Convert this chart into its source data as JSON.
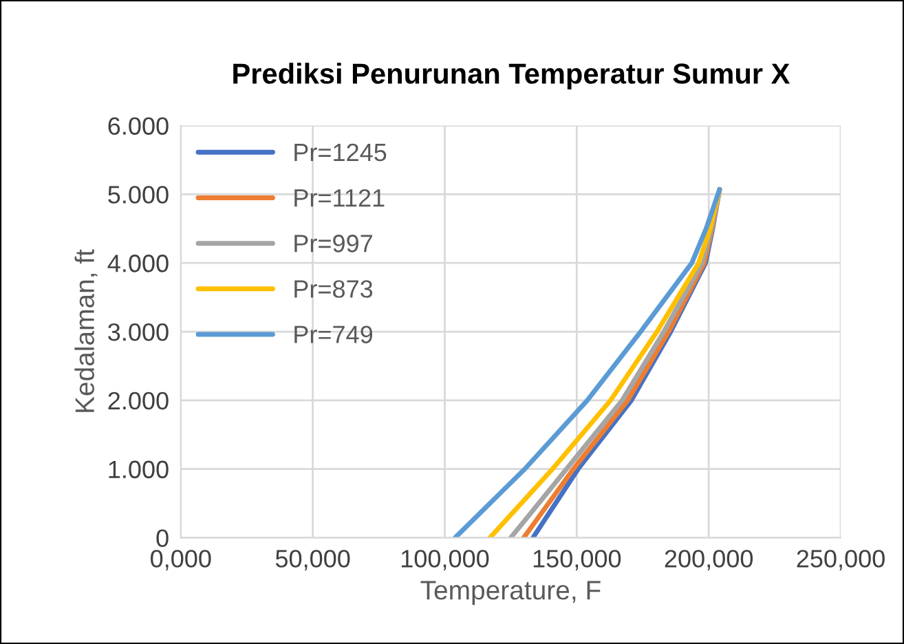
{
  "chart_data": {
    "type": "line",
    "title": "Prediksi Penurunan Temperatur Sumur X",
    "xlabel": "Temperature, F",
    "ylabel": "Kedalaman, ft",
    "xlim": [
      0,
      250
    ],
    "xticks": [
      {
        "value": 0,
        "label": "0,000"
      },
      {
        "value": 50,
        "label": "50,000"
      },
      {
        "value": 100,
        "label": "100,000"
      },
      {
        "value": 150,
        "label": "150,000"
      },
      {
        "value": 200,
        "label": "200,000"
      },
      {
        "value": 250,
        "label": "250,000"
      }
    ],
    "ylim": [
      0,
      6000
    ],
    "yticks": [
      0,
      {
        "value": 1000,
        "label": "1.000"
      },
      {
        "value": 2000,
        "label": "2.000"
      },
      {
        "value": 3000,
        "label": "3.000"
      },
      {
        "value": 4000,
        "label": "4.000"
      },
      {
        "value": 5000,
        "label": "5.000"
      },
      {
        "value": 6000,
        "label": "6.000"
      }
    ],
    "grid": true,
    "legend": "top left",
    "series": [
      {
        "name": "Pr=1245",
        "color": "#4472c4",
        "x": [
          133.4,
          150.5,
          170.7,
          185.6,
          198.8,
          201.5,
          204.1
        ],
        "values": [
          0,
          1000,
          2000,
          3000,
          4000,
          4500,
          5070
        ]
      },
      {
        "name": "Pr=1121",
        "color": "#ed7d31",
        "x": [
          129.9,
          148.7,
          169.3,
          184.8,
          198.3,
          201.3,
          204.1
        ],
        "values": [
          0,
          1000,
          2000,
          3000,
          4000,
          4500,
          5070
        ]
      },
      {
        "name": "Pr=997",
        "color": "#a5a5a5",
        "x": [
          125,
          146.1,
          167.2,
          183,
          197.5,
          201,
          204.1
        ],
        "values": [
          0,
          1000,
          2000,
          3000,
          4000,
          4500,
          5070
        ]
      },
      {
        "name": "Pr=873",
        "color": "#ffc000",
        "x": [
          117.1,
          140.8,
          162.8,
          180.4,
          196.2,
          200.5,
          204.1
        ],
        "values": [
          0,
          1000,
          2000,
          3000,
          4000,
          4500,
          5070
        ]
      },
      {
        "name": "Pr=749",
        "color": "#5b9bd5",
        "x": [
          103.9,
          130.3,
          154,
          174.2,
          193.6,
          199,
          204.1
        ],
        "values": [
          0,
          1000,
          2000,
          3000,
          4000,
          4500,
          5070
        ]
      }
    ]
  }
}
